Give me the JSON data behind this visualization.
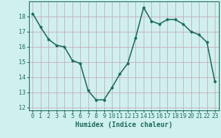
{
  "x": [
    0,
    1,
    2,
    3,
    4,
    5,
    6,
    7,
    8,
    9,
    10,
    11,
    12,
    13,
    14,
    15,
    16,
    17,
    18,
    19,
    20,
    21,
    22,
    23
  ],
  "y": [
    18.2,
    17.3,
    16.5,
    16.1,
    16.0,
    15.1,
    14.9,
    13.1,
    12.5,
    12.5,
    13.3,
    14.2,
    14.9,
    16.6,
    18.6,
    17.7,
    17.5,
    17.8,
    17.8,
    17.5,
    17.0,
    16.8,
    16.3,
    13.7
  ],
  "line_color": "#1a6b5a",
  "marker": "o",
  "marker_size": 2,
  "bg_color": "#cff0ee",
  "grid_color": "#c8a8b8",
  "xlabel": "Humidex (Indice chaleur)",
  "ylim": [
    11.8,
    19.0
  ],
  "xlim": [
    -0.5,
    23.5
  ],
  "yticks": [
    12,
    13,
    14,
    15,
    16,
    17,
    18
  ],
  "xticks": [
    0,
    1,
    2,
    3,
    4,
    5,
    6,
    7,
    8,
    9,
    10,
    11,
    12,
    13,
    14,
    15,
    16,
    17,
    18,
    19,
    20,
    21,
    22,
    23
  ],
  "xlabel_fontsize": 7,
  "tick_fontsize": 6,
  "line_width": 1.2
}
